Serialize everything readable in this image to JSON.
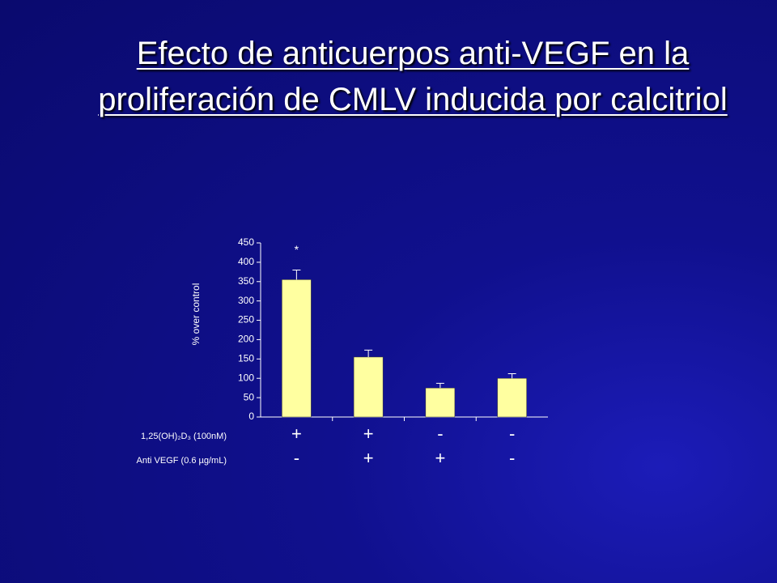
{
  "chart_data": {
    "type": "bar",
    "title": "Efecto de anticuerpos anti-VEGF en la proliferación de CMLV inducida por calcitriol",
    "y_label": "% over control",
    "categories": [
      null,
      null,
      null,
      null
    ],
    "values": [
      355,
      155,
      75,
      100
    ],
    "errors": [
      25,
      18,
      12,
      12
    ],
    "color": "#ffffa0",
    "ylim": [
      0,
      450
    ],
    "yticks": [
      0,
      50,
      100,
      150,
      200,
      250,
      300,
      350,
      400,
      450
    ],
    "annotations": [
      {
        "text": "*",
        "category": 0
      }
    ],
    "treatments": [
      {
        "label": "1,25(OH)₂D₃ (100nM)",
        "signs": [
          "+",
          "+",
          "-",
          "-"
        ]
      },
      {
        "label": "Anti VEGF (0.6 µg/mL)",
        "signs": [
          "-",
          "+",
          "+",
          "-"
        ]
      }
    ]
  }
}
